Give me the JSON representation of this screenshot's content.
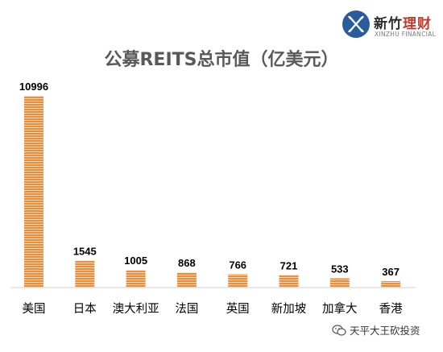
{
  "logo": {
    "name_part1": "新竹",
    "name_part2": "理财",
    "name_en": "XINZHU FINANCIAL"
  },
  "watermark": {
    "text": "天平大王砍投资",
    "icon": "wechat-icon"
  },
  "colors": {
    "bar": "#ee8c3d",
    "bar_stripe": "#ffd9b5",
    "axis": "#d0d0d0",
    "label": "#000000",
    "title": "#595959",
    "logo_blue": "#2a5b9c"
  },
  "chart_data": {
    "type": "bar",
    "title": "公募REITS总市值（亿美元）",
    "xlabel": "",
    "ylabel": "",
    "categories": [
      "美国",
      "日本",
      "澳大利亚",
      "法国",
      "英国",
      "新加坡",
      "加拿大",
      "香港"
    ],
    "values": [
      10996,
      1545,
      1005,
      868,
      766,
      721,
      533,
      367
    ],
    "data_labels": [
      "10996",
      "1545",
      "1005",
      "868",
      "766",
      "721",
      "533",
      "367"
    ],
    "ylim": [
      0,
      10996
    ],
    "grid": false,
    "legend": "none"
  }
}
